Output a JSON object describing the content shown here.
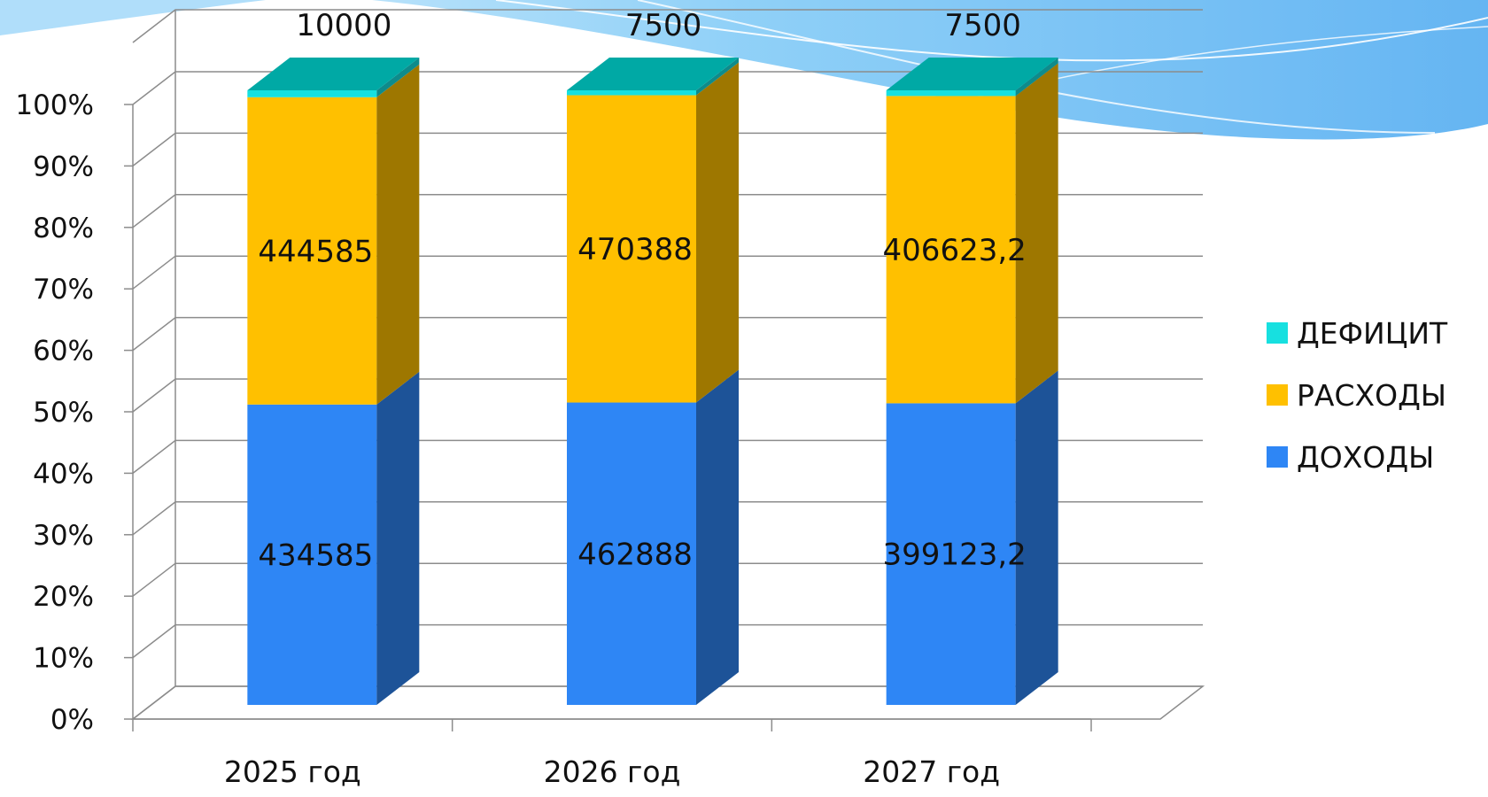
{
  "chart_data": {
    "type": "bar",
    "stacked": "percent",
    "style": "3d",
    "categories": [
      "2025 год",
      "2026 год",
      "2027 год"
    ],
    "series": [
      {
        "name": "ДОХОДЫ",
        "color": "#2E86F5",
        "values": [
          434585,
          462888,
          399123.2
        ],
        "labels": [
          "434585",
          "462888",
          "399123,2"
        ]
      },
      {
        "name": "РАСХОДЫ",
        "color": "#FFC000",
        "values": [
          444585,
          470388,
          406623.2
        ],
        "labels": [
          "444585",
          "470388",
          "406623,2"
        ]
      },
      {
        "name": "ДЕФИЦИТ",
        "color": "#17E0E0",
        "values": [
          10000,
          7500,
          7500
        ],
        "labels": [
          "10000",
          "7500",
          "7500"
        ]
      }
    ],
    "yticks": [
      "0%",
      "10%",
      "20%",
      "30%",
      "40%",
      "50%",
      "60%",
      "70%",
      "80%",
      "90%",
      "100%"
    ],
    "ylim": [
      0,
      100
    ],
    "grid": true,
    "legend": "right"
  }
}
